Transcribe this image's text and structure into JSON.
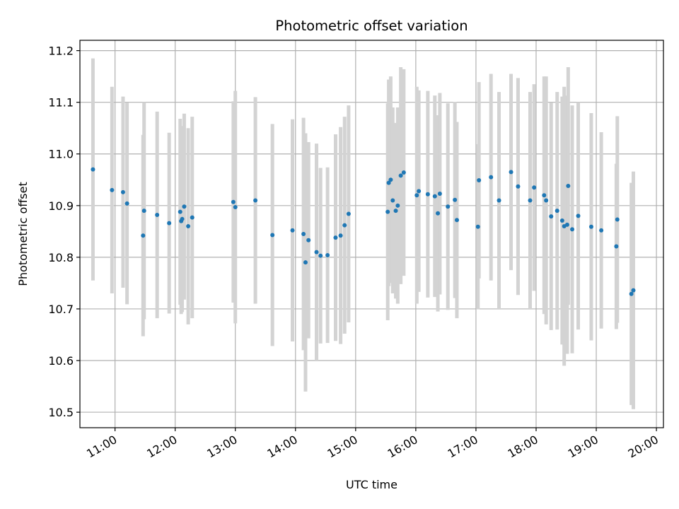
{
  "chart_data": {
    "type": "scatter",
    "title": "Photometric offset variation",
    "xlabel": "UTC time",
    "ylabel": "Photometric offset",
    "xlim": [
      "10:25",
      "20:07"
    ],
    "ylim": [
      10.47,
      11.22
    ],
    "xticks": [
      "11:00",
      "12:00",
      "13:00",
      "14:00",
      "15:00",
      "16:00",
      "17:00",
      "18:00",
      "19:00",
      "20:00"
    ],
    "yticks": [
      10.5,
      10.6,
      10.7,
      10.8,
      10.9,
      11.0,
      11.1,
      11.2
    ],
    "ytick_labels": [
      "10.5",
      "10.6",
      "10.7",
      "10.8",
      "10.9",
      "11.0",
      "11.1",
      "11.2"
    ],
    "grid": true,
    "colors": {
      "points": "#1f77b4",
      "error_bars": "#d3d3d3",
      "grid": "#b0b0b0"
    },
    "series": [
      {
        "x": [
          "10:38",
          "10:57",
          "11:08",
          "11:12",
          "11:28",
          "11:29",
          "11:42",
          "11:54",
          "12:05",
          "12:06",
          "12:07",
          "12:09",
          "12:13",
          "12:17",
          "12:58",
          "13:00",
          "13:20",
          "13:37",
          "13:57",
          "14:08",
          "14:10",
          "14:13",
          "14:21",
          "14:25",
          "14:32",
          "14:40",
          "14:45",
          "14:49",
          "14:53",
          "15:32",
          "15:33",
          "15:35",
          "15:37",
          "15:40",
          "15:42",
          "15:45",
          "15:48",
          "16:01",
          "16:03",
          "16:12",
          "16:19",
          "16:22",
          "16:24",
          "16:32",
          "16:39",
          "16:41",
          "17:02",
          "17:03",
          "17:15",
          "17:23",
          "17:35",
          "17:42",
          "17:54",
          "17:58",
          "18:08",
          "18:10",
          "18:15",
          "18:21",
          "18:26",
          "18:28",
          "18:31",
          "18:32",
          "18:36",
          "18:42",
          "18:55",
          "19:05",
          "19:20",
          "19:21",
          "19:35",
          "19:37"
        ],
        "y": [
          10.97,
          10.93,
          10.926,
          10.904,
          10.842,
          10.89,
          10.882,
          10.866,
          10.888,
          10.87,
          10.874,
          10.898,
          10.86,
          10.877,
          10.907,
          10.897,
          10.91,
          10.843,
          10.852,
          10.845,
          10.79,
          10.833,
          10.81,
          10.803,
          10.804,
          10.838,
          10.842,
          10.862,
          10.884,
          10.888,
          10.944,
          10.95,
          10.91,
          10.89,
          10.9,
          10.958,
          10.964,
          10.92,
          10.928,
          10.922,
          10.918,
          10.885,
          10.923,
          10.898,
          10.911,
          10.872,
          10.859,
          10.949,
          10.955,
          10.91,
          10.965,
          10.937,
          10.91,
          10.935,
          10.92,
          10.91,
          10.879,
          10.89,
          10.871,
          10.86,
          10.863,
          10.938,
          10.854,
          10.88,
          10.859,
          10.852,
          10.821,
          10.873,
          10.729,
          10.736
        ],
        "yerr": [
          0.215,
          0.2,
          0.185,
          0.195,
          0.195,
          0.21,
          0.2,
          0.175,
          0.18,
          0.18,
          0.18,
          0.18,
          0.19,
          0.195,
          0.195,
          0.225,
          0.2,
          0.215,
          0.215,
          0.225,
          0.25,
          0.19,
          0.21,
          0.17,
          0.17,
          0.2,
          0.21,
          0.21,
          0.21,
          0.21,
          0.2,
          0.2,
          0.18,
          0.17,
          0.19,
          0.21,
          0.2,
          0.21,
          0.195,
          0.2,
          0.195,
          0.19,
          0.195,
          0.2,
          0.19,
          0.19,
          0.16,
          0.19,
          0.2,
          0.21,
          0.19,
          0.21,
          0.21,
          0.2,
          0.23,
          0.24,
          0.22,
          0.23,
          0.24,
          0.27,
          0.25,
          0.23,
          0.24,
          0.22,
          0.22,
          0.19,
          0.16,
          0.2,
          0.215,
          0.23
        ]
      }
    ]
  }
}
